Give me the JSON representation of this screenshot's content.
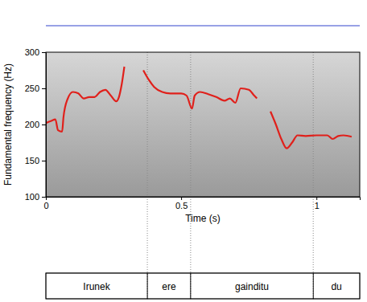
{
  "chart_data": {
    "type": "line",
    "x_label": "Time (s)",
    "y_label": "Fundamental frequency (Hz)",
    "color": "#e0201b",
    "xlim": [
      0,
      1.16
    ],
    "xticks": [
      0,
      0.5,
      1
    ],
    "ylim": [
      100,
      300
    ],
    "yticks": [
      100,
      150,
      200,
      250,
      300
    ],
    "x": [
      0.0,
      0.02,
      0.035,
      0.045,
      0.06,
      0.065,
      0.08,
      0.1,
      0.12,
      0.14,
      0.16,
      0.18,
      0.2,
      0.22,
      0.24,
      0.26,
      0.27,
      0.28,
      0.29,
      0.32,
      0.36,
      0.38,
      0.4,
      0.43,
      0.46,
      0.5,
      0.52,
      0.54,
      0.55,
      0.57,
      0.6,
      0.63,
      0.66,
      0.68,
      0.7,
      0.72,
      0.75,
      0.77,
      0.78,
      0.8,
      0.83,
      0.85,
      0.87,
      0.89,
      0.91,
      0.93,
      0.96,
      1.0,
      1.04,
      1.06,
      1.08,
      1.1,
      1.13
    ],
    "values": [
      202,
      205,
      207,
      192,
      190,
      210,
      235,
      245,
      243,
      236,
      238,
      238,
      245,
      248,
      240,
      232,
      238,
      255,
      280,
      null,
      275,
      262,
      252,
      245,
      243,
      243,
      240,
      222,
      240,
      245,
      242,
      238,
      233,
      236,
      230,
      250,
      248,
      240,
      236,
      null,
      218,
      200,
      180,
      167,
      175,
      185,
      184,
      185,
      185,
      180,
      184,
      185,
      183
    ],
    "intervals": [
      {
        "label": "Irunek",
        "start": 0,
        "end": 0.375
      },
      {
        "label": "ere",
        "start": 0.375,
        "end": 0.535
      },
      {
        "label": "gainditu",
        "start": 0.535,
        "end": 0.988
      },
      {
        "label": "du",
        "start": 0.988,
        "end": 1.16
      }
    ]
  }
}
